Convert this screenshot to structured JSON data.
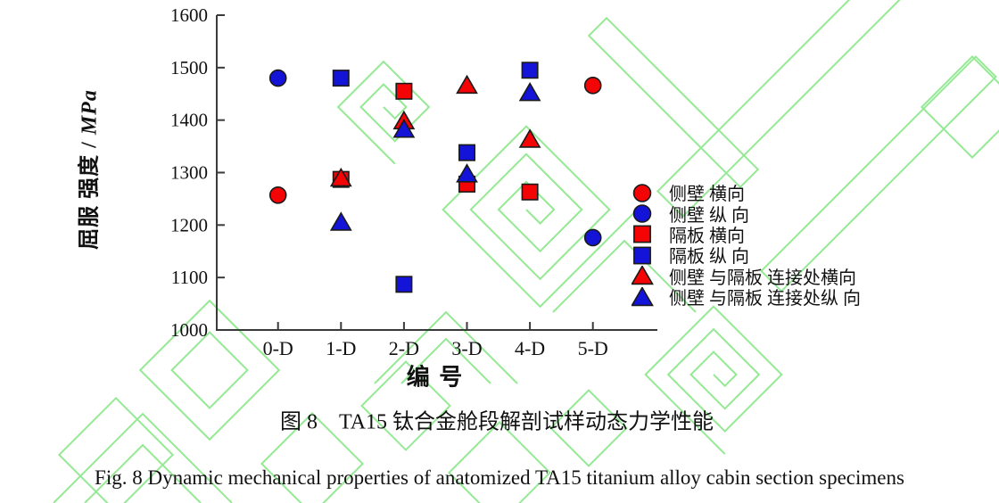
{
  "figure": {
    "caption_zh": "图 8　TA15 钛合金舱段解剖试样动态力学性能",
    "caption_en": "Fig. 8 Dynamic mechanical properties of anatomized TA15 titanium alloy cabin section specimens",
    "watermark_color": "#95e995"
  },
  "chart_data": {
    "type": "scatter",
    "xlabel": "编 号",
    "ylabel_text": "屈服 强度 / ",
    "ylabel_unit": "MPa",
    "ylim": [
      1000,
      1600
    ],
    "yticks": [
      1000,
      1100,
      1200,
      1300,
      1400,
      1500,
      1600
    ],
    "categories": [
      "0-D",
      "1-D",
      "2-D",
      "3-D",
      "4-D",
      "5-D"
    ],
    "grid": false,
    "legend_position": "right",
    "axis_color": "#3a3a3a",
    "marker_outline": "#1a1a1a",
    "series": [
      {
        "name": "侧壁 横向",
        "marker": "circle",
        "color": "#f40404",
        "points": [
          [
            "0-D",
            1257
          ],
          [
            "5-D",
            1466
          ]
        ]
      },
      {
        "name": "侧壁 纵 向",
        "marker": "circle",
        "color": "#1414d8",
        "points": [
          [
            "0-D",
            1480
          ],
          [
            "5-D",
            1176
          ]
        ]
      },
      {
        "name": "隔板 横向",
        "marker": "square",
        "color": "#f40404",
        "points": [
          [
            "1-D",
            1287
          ],
          [
            "2-D",
            1455
          ],
          [
            "3-D",
            1278
          ],
          [
            "4-D",
            1263
          ]
        ]
      },
      {
        "name": "隔板 纵 向",
        "marker": "square",
        "color": "#1414d8",
        "points": [
          [
            "1-D",
            1480
          ],
          [
            "2-D",
            1087
          ],
          [
            "3-D",
            1338
          ],
          [
            "4-D",
            1495
          ]
        ]
      },
      {
        "name": "侧壁 与隔板 连接处横向",
        "marker": "triangle",
        "color": "#f40404",
        "points": [
          [
            "1-D",
            1289
          ],
          [
            "2-D",
            1398
          ],
          [
            "3-D",
            1466
          ],
          [
            "4-D",
            1363
          ]
        ]
      },
      {
        "name": "侧壁 与隔板 连接处纵 向",
        "marker": "triangle",
        "color": "#1414d8",
        "points": [
          [
            "1-D",
            1205
          ],
          [
            "2-D",
            1382
          ],
          [
            "3-D",
            1297
          ],
          [
            "4-D",
            1452
          ]
        ]
      }
    ]
  }
}
